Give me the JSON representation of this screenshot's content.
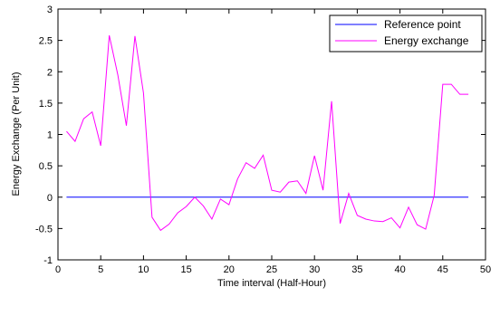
{
  "chart_data": {
    "type": "line",
    "title": "",
    "xlabel": "Time interval (Half-Hour)",
    "ylabel": "Energy Exchange  (Per Unit)",
    "xlim": [
      0,
      50
    ],
    "ylim": [
      -1,
      3
    ],
    "xticks": [
      0,
      5,
      10,
      15,
      20,
      25,
      30,
      35,
      40,
      45,
      50
    ],
    "yticks": [
      -1,
      -0.5,
      0,
      0.5,
      1,
      1.5,
      2,
      2.5,
      3
    ],
    "xtick_labels": [
      "0",
      "5",
      "10",
      "15",
      "20",
      "25",
      "30",
      "35",
      "40",
      "45",
      "50"
    ],
    "ytick_labels": [
      "-1",
      "-0.5",
      "0",
      "0.5",
      "1",
      "1.5",
      "2",
      "2.5",
      "3"
    ],
    "grid": false,
    "legend_position": "top-right",
    "series": [
      {
        "name": "Reference point",
        "color": "#0000ff",
        "x": [
          1,
          48
        ],
        "y": [
          0,
          0
        ]
      },
      {
        "name": "Energy exchange",
        "color": "#ff00ff",
        "x": [
          1,
          2,
          3,
          4,
          5,
          6,
          7,
          8,
          9,
          10,
          11,
          12,
          13,
          14,
          15,
          16,
          17,
          18,
          19,
          20,
          21,
          22,
          23,
          24,
          25,
          26,
          27,
          28,
          29,
          30,
          31,
          32,
          33,
          34,
          35,
          36,
          37,
          38,
          39,
          40,
          41,
          42,
          43,
          44,
          45,
          46,
          47,
          48
        ],
        "y": [
          1.05,
          0.89,
          1.25,
          1.36,
          0.82,
          2.58,
          1.95,
          1.14,
          2.57,
          1.66,
          -0.32,
          -0.53,
          -0.43,
          -0.25,
          -0.15,
          0.0,
          -0.14,
          -0.35,
          -0.03,
          -0.12,
          0.29,
          0.55,
          0.46,
          0.67,
          0.11,
          0.08,
          0.24,
          0.26,
          0.06,
          0.66,
          0.11,
          1.53,
          -0.42,
          0.06,
          -0.29,
          -0.35,
          -0.38,
          -0.39,
          -0.33,
          -0.49,
          -0.16,
          -0.44,
          -0.51,
          0.03,
          1.8,
          1.8,
          1.64,
          1.64
        ]
      }
    ]
  }
}
